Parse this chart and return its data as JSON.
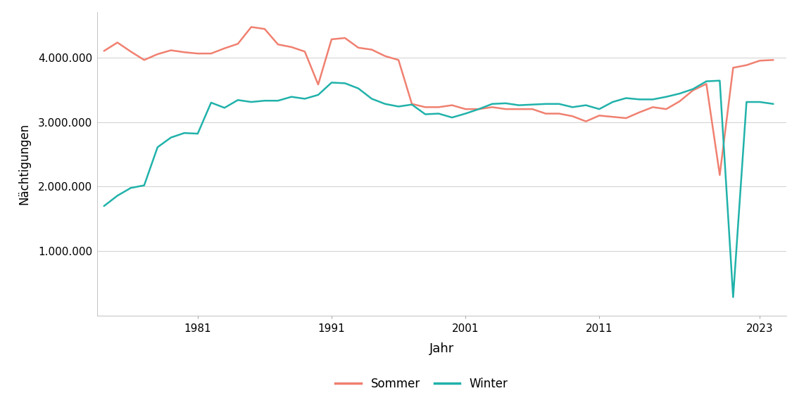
{
  "xlabel": "Jahr",
  "ylabel": "Nächtigungen",
  "sommer_color": "#F08070",
  "winter_color": "#20B2AA",
  "background_color": "#FFFFFF",
  "grid_color": "#D0D0D0",
  "xlim": [
    1973.5,
    2025
  ],
  "ylim": [
    0,
    4700000
  ],
  "yticks": [
    1000000,
    2000000,
    3000000,
    4000000
  ],
  "xticks": [
    1981,
    1991,
    2001,
    2011,
    2023
  ],
  "sommer_years": [
    1974,
    1975,
    1976,
    1977,
    1978,
    1979,
    1980,
    1981,
    1982,
    1983,
    1984,
    1985,
    1986,
    1987,
    1988,
    1989,
    1990,
    1991,
    1992,
    1993,
    1994,
    1995,
    1996,
    1997,
    1998,
    1999,
    2000,
    2001,
    2002,
    2003,
    2004,
    2005,
    2006,
    2007,
    2008,
    2009,
    2010,
    2011,
    2012,
    2013,
    2014,
    2015,
    2016,
    2017,
    2018,
    2019,
    2020,
    2021,
    2022,
    2023,
    2024
  ],
  "sommer_values": [
    4100000,
    4230000,
    4090000,
    3960000,
    4050000,
    4110000,
    4080000,
    4060000,
    4060000,
    4140000,
    4210000,
    4470000,
    4440000,
    4200000,
    4160000,
    4090000,
    3580000,
    4280000,
    4300000,
    4150000,
    4120000,
    4020000,
    3960000,
    3280000,
    3230000,
    3230000,
    3260000,
    3200000,
    3200000,
    3230000,
    3200000,
    3200000,
    3200000,
    3130000,
    3130000,
    3090000,
    3010000,
    3100000,
    3080000,
    3060000,
    3150000,
    3230000,
    3200000,
    3320000,
    3490000,
    3590000,
    2180000,
    3840000,
    3880000,
    3950000,
    3960000
  ],
  "winter_years": [
    1974,
    1975,
    1976,
    1977,
    1978,
    1979,
    1980,
    1981,
    1982,
    1983,
    1984,
    1985,
    1986,
    1987,
    1988,
    1989,
    1990,
    1991,
    1992,
    1993,
    1994,
    1995,
    1996,
    1997,
    1998,
    1999,
    2000,
    2001,
    2002,
    2003,
    2004,
    2005,
    2006,
    2007,
    2008,
    2009,
    2010,
    2011,
    2012,
    2013,
    2014,
    2015,
    2016,
    2017,
    2018,
    2019,
    2020,
    2021,
    2022,
    2023,
    2024
  ],
  "winter_values": [
    1700000,
    1860000,
    1980000,
    2020000,
    2610000,
    2760000,
    2830000,
    2820000,
    3300000,
    3220000,
    3340000,
    3310000,
    3330000,
    3330000,
    3390000,
    3360000,
    3420000,
    3610000,
    3600000,
    3520000,
    3360000,
    3280000,
    3240000,
    3270000,
    3120000,
    3130000,
    3070000,
    3130000,
    3200000,
    3280000,
    3290000,
    3260000,
    3270000,
    3280000,
    3280000,
    3230000,
    3260000,
    3200000,
    3310000,
    3370000,
    3350000,
    3350000,
    3390000,
    3440000,
    3510000,
    3630000,
    3640000,
    290000,
    3310000,
    3310000,
    3280000
  ],
  "legend_loc": "lower center",
  "line_width": 1.8
}
